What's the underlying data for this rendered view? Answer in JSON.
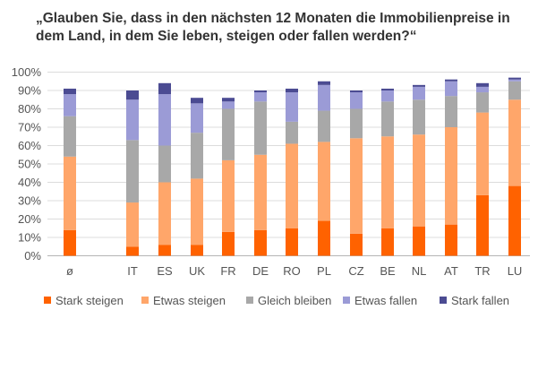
{
  "chart_data": {
    "type": "bar",
    "stacked": true,
    "title": "„Glauben Sie, dass in den nächsten 12 Monaten die Immobilienpreise in dem Land, in dem Sie leben, steigen oder fallen werden?“",
    "xlabel": "",
    "ylabel": "",
    "ylim": [
      0,
      100
    ],
    "y_ticks": [
      "0%",
      "10%",
      "20%",
      "30%",
      "40%",
      "50%",
      "60%",
      "70%",
      "80%",
      "90%",
      "100%"
    ],
    "grid": true,
    "legend_position": "bottom",
    "categories": [
      "ø",
      "IT",
      "ES",
      "UK",
      "FR",
      "DE",
      "RO",
      "PL",
      "CZ",
      "BE",
      "NL",
      "AT",
      "TR",
      "LU"
    ],
    "series": [
      {
        "name": "Stark steigen",
        "color": "#ff6200",
        "values": [
          14,
          5,
          6,
          6,
          13,
          14,
          15,
          19,
          12,
          15,
          16,
          17,
          33,
          38
        ]
      },
      {
        "name": "Etwas steigen",
        "color": "#ffa66a",
        "values": [
          40,
          24,
          34,
          36,
          39,
          41,
          46,
          43,
          52,
          50,
          50,
          53,
          45,
          47
        ]
      },
      {
        "name": "Gleich bleiben",
        "color": "#a8a8a8",
        "values": [
          22,
          34,
          20,
          25,
          28,
          29,
          12,
          17,
          16,
          19,
          19,
          17,
          11,
          10
        ]
      },
      {
        "name": "Etwas fallen",
        "color": "#9b9bd6",
        "values": [
          12,
          22,
          28,
          16,
          4,
          5,
          16,
          14,
          9,
          6,
          7,
          8,
          3,
          1
        ]
      },
      {
        "name": "Stark fallen",
        "color": "#4b4b92",
        "values": [
          3,
          5,
          6,
          3,
          2,
          1,
          2,
          2,
          1,
          1,
          1,
          1,
          2,
          1
        ]
      }
    ]
  }
}
